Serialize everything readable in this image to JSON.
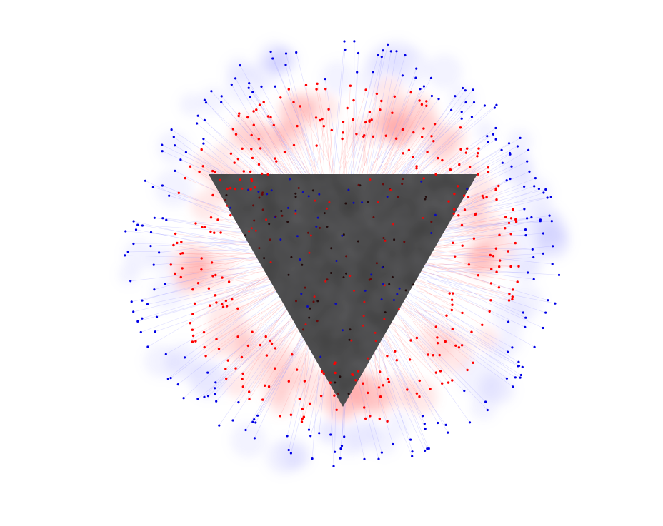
{
  "diagram": {
    "kind": "radial-network-layout",
    "background_color": "#ffffff",
    "core": {
      "shape": "inverted-triangle",
      "fill_color": "#3f3f3f"
    },
    "inner_ring": {
      "node_color": "#ff0000",
      "glow_color": "#ff8080"
    },
    "outer_ring": {
      "node_color": "#0000e6",
      "glow_color": "#9a9aff"
    },
    "edge_colors": [
      "#ff9a9a",
      "#a0a0ff"
    ],
    "core_scatter_colors": [
      "#ff0000",
      "#6b0000",
      "#0000cc",
      "#1a0000"
    ]
  }
}
